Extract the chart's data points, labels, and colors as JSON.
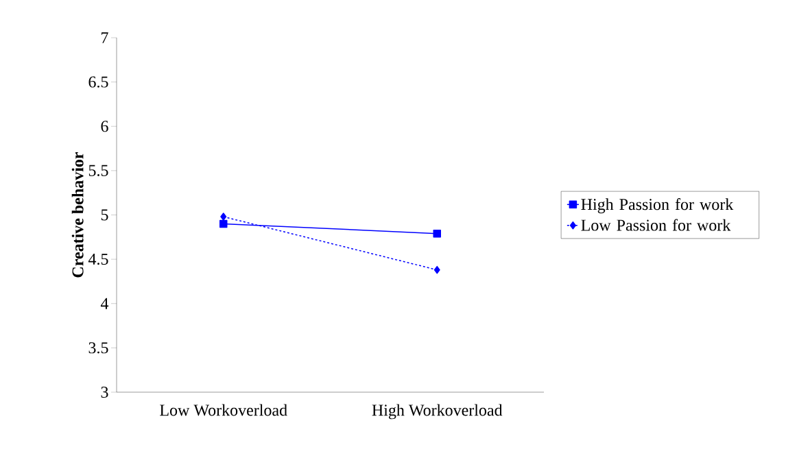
{
  "chart_data": {
    "type": "line",
    "ylabel": "Creative behavior",
    "categories": [
      "Low Workoverload",
      "High Workoverload"
    ],
    "series": [
      {
        "name": "High Passion for work",
        "color": "#0000ff",
        "values": [
          4.9,
          4.79
        ],
        "marker": "square",
        "line_style": "solid"
      },
      {
        "name": "Low Passion for work",
        "color": "#0000ff",
        "values": [
          4.98,
          4.38
        ],
        "marker": "diamond",
        "line_style": "dashed"
      }
    ],
    "ylim": [
      3,
      7
    ],
    "yticks": [
      3,
      3.5,
      4,
      4.5,
      5,
      5.5,
      6,
      6.5,
      7
    ],
    "grid": false,
    "legend": "right"
  }
}
